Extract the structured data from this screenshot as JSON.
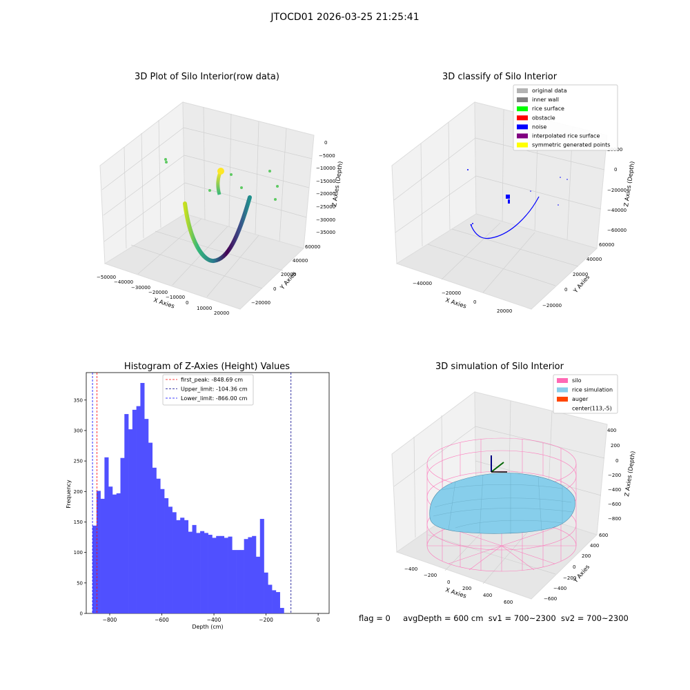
{
  "suptitle": "JTOCD01 2026-03-25 21:25:41",
  "panels": {
    "raw": {
      "title": "3D Plot of Silo Interior(row data)",
      "xlabel": "X Axies",
      "ylabel": "Y Axies",
      "zlabel": "Z Axies (Depth)",
      "xticks": [
        "−50000",
        "−40000",
        "−30000",
        "−20000",
        "−10000",
        "0",
        "10000",
        "20000"
      ],
      "yticks": [
        "−20000",
        "0",
        "20000",
        "40000",
        "60000"
      ],
      "zticks": [
        "0",
        "−5000",
        "−10000",
        "−15000",
        "−20000",
        "−25000",
        "−30000",
        "−35000"
      ]
    },
    "classify": {
      "title": "3D classify of Silo Interior",
      "xlabel": "X Axies",
      "ylabel": "Y Axies",
      "zlabel": "Z Axies (Depth)",
      "xticks": [
        "−40000",
        "−20000",
        "0",
        "20000"
      ],
      "yticks": [
        "−20000",
        "0",
        "20000",
        "40000",
        "60000"
      ],
      "zticks": [
        "20000",
        "0",
        "−20000",
        "−40000",
        "−60000"
      ],
      "legend": [
        {
          "label": "original data",
          "color": "#b3b3b3"
        },
        {
          "label": "inner wall",
          "color": "#808080"
        },
        {
          "label": "rice surface",
          "color": "#00ff00"
        },
        {
          "label": "obstacle",
          "color": "#ff0000"
        },
        {
          "label": "noise",
          "color": "#0000ff"
        },
        {
          "label": "interpolated rice surface",
          "color": "#800080"
        },
        {
          "label": "symmetric generated points",
          "color": "#ffff00"
        }
      ]
    },
    "simulation": {
      "title": "3D simulation of Silo Interior",
      "xlabel": "X Axies",
      "ylabel": "Y Axies",
      "zlabel": "Z Axies (Depth)",
      "xticks": [
        "−400",
        "−200",
        "0",
        "200",
        "400",
        "600"
      ],
      "yticks": [
        "−600",
        "−400",
        "−200",
        "0",
        "200",
        "400",
        "600"
      ],
      "zticks": [
        "400",
        "200",
        "0",
        "−200",
        "−400",
        "−600",
        "−800"
      ],
      "legend": [
        {
          "label": "silo",
          "color": "#ff69b4"
        },
        {
          "label": "rice simulation",
          "color": "#87ceeb"
        },
        {
          "label": "auger",
          "color": "#ff4500"
        },
        {
          "label": "center(113,-5)",
          "color": "#ffffff"
        }
      ]
    }
  },
  "chart_data": {
    "type": "bar",
    "title": "Histogram of Z-Axies (Height) Values",
    "xlabel": "Depth (cm)",
    "ylabel": "Frequency",
    "xlim": [
      -890,
      42
    ],
    "ylim": [
      0,
      395
    ],
    "xticks": [
      -800,
      -600,
      -400,
      -200,
      0
    ],
    "yticks": [
      0,
      50,
      100,
      150,
      200,
      250,
      300,
      350
    ],
    "bin_start": -866,
    "bin_width": 15.3,
    "values": [
      144,
      201,
      188,
      256,
      208,
      195,
      197,
      255,
      327,
      302,
      334,
      340,
      378,
      319,
      280,
      239,
      221,
      204,
      189,
      175,
      166,
      153,
      157,
      153,
      134,
      145,
      132,
      135,
      132,
      129,
      124,
      127,
      127,
      124,
      126,
      104,
      104,
      104,
      122,
      125,
      127,
      93,
      155,
      67,
      47,
      38,
      35,
      9
    ],
    "bar_color": "#5050ff",
    "vlines": [
      {
        "label": "first_peak: -848.69 cm",
        "x": -848.69,
        "color": "#ff0000"
      },
      {
        "label": "Upper_limit: -104.36 cm",
        "x": -104.36,
        "color": "#00008b"
      },
      {
        "label": "Lower_limit: -866.00 cm",
        "x": -866.0,
        "color": "#0000ff"
      }
    ]
  },
  "footer": {
    "flag": "flag = 0",
    "avg": "avgDepth = 600 cm",
    "sv1": "sv1 = 700~2300",
    "sv2": "sv2 = 700~2300"
  }
}
